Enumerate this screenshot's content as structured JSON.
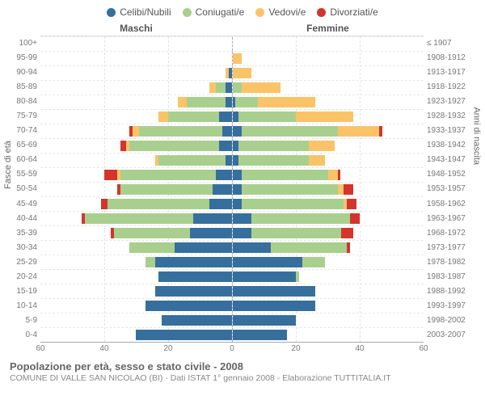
{
  "legend": [
    {
      "label": "Celibi/Nubili",
      "color": "#366f9d"
    },
    {
      "label": "Coniugati/e",
      "color": "#a9cf8e"
    },
    {
      "label": "Vedovi/e",
      "color": "#fbc368"
    },
    {
      "label": "Divorziati/e",
      "color": "#d4342c"
    }
  ],
  "headers": {
    "male": "Maschi",
    "female": "Femmine"
  },
  "axis_titles": {
    "left": "Fasce di età",
    "right": "Anni di nascita"
  },
  "x_axis": {
    "max": 60,
    "ticks": [
      60,
      40,
      20,
      0,
      20,
      40,
      60
    ]
  },
  "colors": {
    "single": "#366f9d",
    "married": "#a9cf8e",
    "widowed": "#fbc368",
    "divorced": "#d4342c",
    "grid": "#e4e4e4",
    "centerline": "#a8a8c0"
  },
  "rows": [
    {
      "age": "100+",
      "birth": "≤ 1907",
      "m": {
        "s": 0,
        "c": 0,
        "w": 0,
        "d": 0
      },
      "f": {
        "s": 0,
        "c": 0,
        "w": 0,
        "d": 0
      }
    },
    {
      "age": "95-99",
      "birth": "1908-1912",
      "m": {
        "s": 0,
        "c": 0,
        "w": 0,
        "d": 0
      },
      "f": {
        "s": 0,
        "c": 0,
        "w": 3,
        "d": 0
      }
    },
    {
      "age": "90-94",
      "birth": "1913-1917",
      "m": {
        "s": 1,
        "c": 0,
        "w": 1,
        "d": 0
      },
      "f": {
        "s": 0,
        "c": 0,
        "w": 6,
        "d": 0
      }
    },
    {
      "age": "85-89",
      "birth": "1918-1922",
      "m": {
        "s": 2,
        "c": 3,
        "w": 2,
        "d": 0
      },
      "f": {
        "s": 0,
        "c": 3,
        "w": 12,
        "d": 0
      }
    },
    {
      "age": "80-84",
      "birth": "1923-1927",
      "m": {
        "s": 2,
        "c": 12,
        "w": 3,
        "d": 0
      },
      "f": {
        "s": 1,
        "c": 7,
        "w": 18,
        "d": 0
      }
    },
    {
      "age": "75-79",
      "birth": "1928-1932",
      "m": {
        "s": 4,
        "c": 16,
        "w": 3,
        "d": 0
      },
      "f": {
        "s": 2,
        "c": 18,
        "w": 18,
        "d": 0
      }
    },
    {
      "age": "70-74",
      "birth": "1933-1937",
      "m": {
        "s": 3,
        "c": 26,
        "w": 2,
        "d": 1
      },
      "f": {
        "s": 3,
        "c": 30,
        "w": 13,
        "d": 1
      }
    },
    {
      "age": "65-69",
      "birth": "1938-1942",
      "m": {
        "s": 4,
        "c": 28,
        "w": 1,
        "d": 2
      },
      "f": {
        "s": 2,
        "c": 22,
        "w": 8,
        "d": 0
      }
    },
    {
      "age": "60-64",
      "birth": "1943-1947",
      "m": {
        "s": 2,
        "c": 21,
        "w": 1,
        "d": 0
      },
      "f": {
        "s": 2,
        "c": 22,
        "w": 5,
        "d": 0
      }
    },
    {
      "age": "55-59",
      "birth": "1948-1952",
      "m": {
        "s": 5,
        "c": 30,
        "w": 1,
        "d": 4
      },
      "f": {
        "s": 3,
        "c": 27,
        "w": 3,
        "d": 1
      }
    },
    {
      "age": "50-54",
      "birth": "1953-1957",
      "m": {
        "s": 6,
        "c": 29,
        "w": 0,
        "d": 1
      },
      "f": {
        "s": 3,
        "c": 30,
        "w": 2,
        "d": 3
      }
    },
    {
      "age": "45-49",
      "birth": "1958-1962",
      "m": {
        "s": 7,
        "c": 32,
        "w": 0,
        "d": 2
      },
      "f": {
        "s": 3,
        "c": 32,
        "w": 1,
        "d": 3
      }
    },
    {
      "age": "40-44",
      "birth": "1963-1967",
      "m": {
        "s": 12,
        "c": 34,
        "w": 0,
        "d": 1
      },
      "f": {
        "s": 6,
        "c": 31,
        "w": 0,
        "d": 3
      }
    },
    {
      "age": "35-39",
      "birth": "1968-1972",
      "m": {
        "s": 13,
        "c": 24,
        "w": 0,
        "d": 1
      },
      "f": {
        "s": 6,
        "c": 28,
        "w": 0,
        "d": 4
      }
    },
    {
      "age": "30-34",
      "birth": "1973-1977",
      "m": {
        "s": 18,
        "c": 14,
        "w": 0,
        "d": 0
      },
      "f": {
        "s": 12,
        "c": 24,
        "w": 0,
        "d": 1
      }
    },
    {
      "age": "25-29",
      "birth": "1978-1982",
      "m": {
        "s": 24,
        "c": 3,
        "w": 0,
        "d": 0
      },
      "f": {
        "s": 22,
        "c": 7,
        "w": 0,
        "d": 0
      }
    },
    {
      "age": "20-24",
      "birth": "1983-1987",
      "m": {
        "s": 23,
        "c": 0,
        "w": 0,
        "d": 0
      },
      "f": {
        "s": 20,
        "c": 1,
        "w": 0,
        "d": 0
      }
    },
    {
      "age": "15-19",
      "birth": "1988-1992",
      "m": {
        "s": 24,
        "c": 0,
        "w": 0,
        "d": 0
      },
      "f": {
        "s": 26,
        "c": 0,
        "w": 0,
        "d": 0
      }
    },
    {
      "age": "10-14",
      "birth": "1993-1997",
      "m": {
        "s": 27,
        "c": 0,
        "w": 0,
        "d": 0
      },
      "f": {
        "s": 26,
        "c": 0,
        "w": 0,
        "d": 0
      }
    },
    {
      "age": "5-9",
      "birth": "1998-2002",
      "m": {
        "s": 22,
        "c": 0,
        "w": 0,
        "d": 0
      },
      "f": {
        "s": 20,
        "c": 0,
        "w": 0,
        "d": 0
      }
    },
    {
      "age": "0-4",
      "birth": "2003-2007",
      "m": {
        "s": 30,
        "c": 0,
        "w": 0,
        "d": 0
      },
      "f": {
        "s": 17,
        "c": 0,
        "w": 0,
        "d": 0
      }
    }
  ],
  "footer": {
    "line1": "Popolazione per età, sesso e stato civile - 2008",
    "line2": "COMUNE DI VALLE SAN NICOLAO (BI) - Dati ISTAT 1° gennaio 2008 - Elaborazione TUTTITALIA.IT"
  }
}
